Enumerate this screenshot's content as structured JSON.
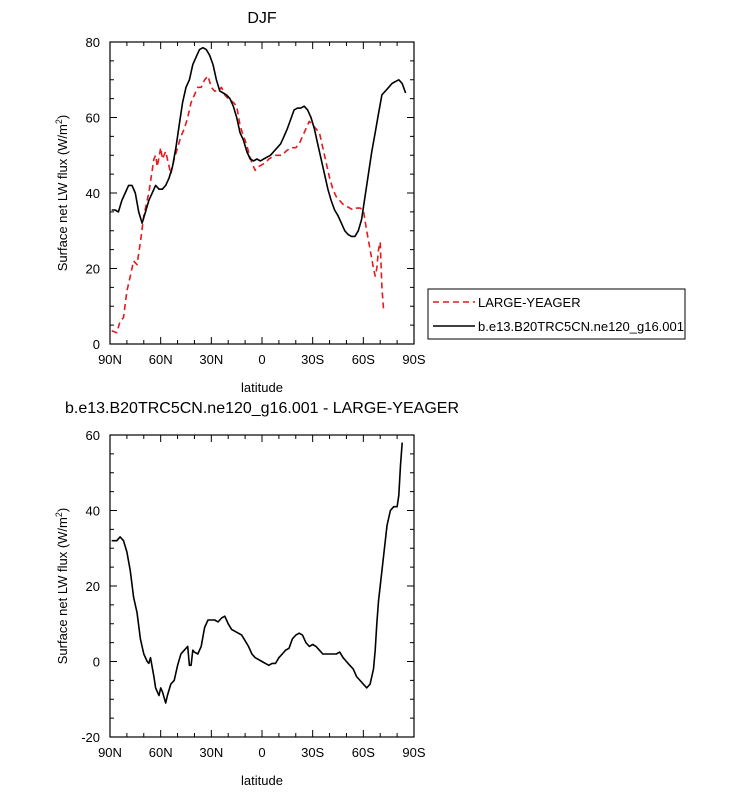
{
  "chart_data": [
    {
      "type": "line",
      "title": "DJF",
      "xlabel": "latitude",
      "ylabel": "Surface net LW flux (W/m",
      "ylabel_sup": "2",
      "ylabel_end": ")",
      "xlim": [
        90,
        -90
      ],
      "ylim": [
        0,
        80
      ],
      "x_ticks": [
        {
          "value": 90,
          "label": "90N"
        },
        {
          "value": 60,
          "label": "60N"
        },
        {
          "value": 30,
          "label": "30N"
        },
        {
          "value": 0,
          "label": "0"
        },
        {
          "value": -30,
          "label": "30S"
        },
        {
          "value": -60,
          "label": "60S"
        },
        {
          "value": -90,
          "label": "90S"
        }
      ],
      "y_ticks": [
        0,
        20,
        40,
        60,
        80
      ],
      "legend": [
        "LARGE-YEAGER",
        "b.e13.B20TRC5CN.ne120_g16.001"
      ],
      "series": [
        {
          "name": "LARGE-YEAGER",
          "color": "#e41a1c",
          "dash": true,
          "points": [
            [
              89,
              3.5
            ],
            [
              86,
              3
            ],
            [
              84,
              6
            ],
            [
              82,
              7
            ],
            [
              80,
              14
            ],
            [
              78,
              18
            ],
            [
              76,
              22
            ],
            [
              74,
              21
            ],
            [
              72,
              27
            ],
            [
              70,
              34
            ],
            [
              67,
              40
            ],
            [
              65,
              46
            ],
            [
              64,
              49
            ],
            [
              63,
              50
            ],
            [
              62,
              47
            ],
            [
              60,
              52
            ],
            [
              59,
              49
            ],
            [
              57,
              51
            ],
            [
              55,
              47
            ],
            [
              54,
              45
            ],
            [
              52,
              49
            ],
            [
              50,
              52
            ],
            [
              48,
              55
            ],
            [
              46,
              57
            ],
            [
              44,
              60
            ],
            [
              42,
              64
            ],
            [
              40,
              66
            ],
            [
              38,
              68
            ],
            [
              36,
              68
            ],
            [
              34,
              70
            ],
            [
              32,
              71
            ],
            [
              30,
              68
            ],
            [
              28,
              67
            ],
            [
              26,
              67
            ],
            [
              24,
              68
            ],
            [
              22,
              66
            ],
            [
              20,
              65
            ],
            [
              17,
              64
            ],
            [
              15,
              63
            ],
            [
              13,
              58
            ],
            [
              11,
              55
            ],
            [
              10,
              54
            ],
            [
              8,
              51
            ],
            [
              6,
              48
            ],
            [
              4,
              46
            ],
            [
              2,
              47
            ],
            [
              0,
              47.5
            ],
            [
              -2,
              48
            ],
            [
              -4,
              49
            ],
            [
              -6,
              49.5
            ],
            [
              -8,
              50
            ],
            [
              -10,
              50
            ],
            [
              -12,
              50
            ],
            [
              -14,
              51
            ],
            [
              -17,
              52
            ],
            [
              -20,
              52
            ],
            [
              -22,
              53
            ],
            [
              -24,
              55
            ],
            [
              -26,
              57
            ],
            [
              -28,
              59
            ],
            [
              -30,
              58
            ],
            [
              -32,
              57
            ],
            [
              -34,
              56
            ],
            [
              -36,
              52
            ],
            [
              -38,
              48
            ],
            [
              -40,
              44
            ],
            [
              -42,
              41
            ],
            [
              -44,
              39
            ],
            [
              -46,
              38
            ],
            [
              -48,
              37
            ],
            [
              -50,
              36.5
            ],
            [
              -52,
              36
            ],
            [
              -54,
              35.5
            ],
            [
              -56,
              36
            ],
            [
              -58,
              36
            ],
            [
              -60,
              35.5
            ],
            [
              -62,
              30
            ],
            [
              -64,
              25
            ],
            [
              -66,
              20
            ],
            [
              -67,
              18
            ],
            [
              -68,
              20
            ],
            [
              -69,
              25
            ],
            [
              -70,
              27
            ],
            [
              -71,
              15
            ],
            [
              -72,
              9
            ]
          ]
        },
        {
          "name": "b.e13.B20TRC5CN.ne120_g16.001",
          "color": "#000000",
          "dash": false,
          "points": [
            [
              89,
              35.5
            ],
            [
              87,
              35.5
            ],
            [
              85,
              35
            ],
            [
              83,
              38
            ],
            [
              81,
              40
            ],
            [
              79,
              42
            ],
            [
              77,
              42
            ],
            [
              75,
              40
            ],
            [
              73,
              35
            ],
            [
              71,
              32
            ],
            [
              69,
              35
            ],
            [
              67,
              38
            ],
            [
              65,
              40
            ],
            [
              63,
              42
            ],
            [
              61,
              41
            ],
            [
              59,
              41
            ],
            [
              57,
              42
            ],
            [
              55,
              44
            ],
            [
              53,
              47
            ],
            [
              51,
              52
            ],
            [
              49,
              58
            ],
            [
              47,
              64
            ],
            [
              45,
              68
            ],
            [
              43,
              70
            ],
            [
              41,
              74
            ],
            [
              39,
              76
            ],
            [
              37,
              78
            ],
            [
              35,
              78.5
            ],
            [
              33,
              78
            ],
            [
              31,
              76.5
            ],
            [
              29,
              74
            ],
            [
              27,
              70
            ],
            [
              25,
              67
            ],
            [
              23,
              66.5
            ],
            [
              21,
              66
            ],
            [
              19,
              65
            ],
            [
              17,
              63
            ],
            [
              15,
              60
            ],
            [
              13,
              56
            ],
            [
              11,
              54
            ],
            [
              9,
              51
            ],
            [
              7,
              49
            ],
            [
              5,
              48.5
            ],
            [
              3,
              49
            ],
            [
              1,
              48.5
            ],
            [
              -1,
              49
            ],
            [
              -3,
              49.5
            ],
            [
              -5,
              50
            ],
            [
              -7,
              51
            ],
            [
              -9,
              52
            ],
            [
              -11,
              53
            ],
            [
              -13,
              55
            ],
            [
              -15,
              57
            ],
            [
              -17,
              59.5
            ],
            [
              -19,
              62
            ],
            [
              -21,
              62.5
            ],
            [
              -23,
              62.5
            ],
            [
              -25,
              63
            ],
            [
              -27,
              62
            ],
            [
              -29,
              60
            ],
            [
              -31,
              57
            ],
            [
              -33,
              53
            ],
            [
              -35,
              49
            ],
            [
              -37,
              45
            ],
            [
              -39,
              41
            ],
            [
              -41,
              38
            ],
            [
              -43,
              35.5
            ],
            [
              -45,
              34
            ],
            [
              -47,
              32
            ],
            [
              -49,
              30
            ],
            [
              -51,
              29
            ],
            [
              -53,
              28.5
            ],
            [
              -55,
              28.5
            ],
            [
              -57,
              30
            ],
            [
              -59,
              33
            ],
            [
              -61,
              39
            ],
            [
              -63,
              45
            ],
            [
              -65,
              51
            ],
            [
              -67,
              56
            ],
            [
              -69,
              61
            ],
            [
              -71,
              66
            ],
            [
              -73,
              67
            ],
            [
              -75,
              68
            ],
            [
              -77,
              69
            ],
            [
              -79,
              69.5
            ],
            [
              -81,
              70
            ],
            [
              -83,
              69
            ],
            [
              -85,
              66.5
            ]
          ]
        }
      ]
    },
    {
      "type": "line",
      "title": "b.e13.B20TRC5CN.ne120_g16.001 - LARGE-YEAGER",
      "xlabel": "latitude",
      "ylabel": "Surface net LW flux (W/m",
      "ylabel_sup": "2",
      "ylabel_end": ")",
      "xlim": [
        90,
        -90
      ],
      "ylim": [
        -20,
        60
      ],
      "x_ticks": [
        {
          "value": 90,
          "label": "90N"
        },
        {
          "value": 60,
          "label": "60N"
        },
        {
          "value": 30,
          "label": "30N"
        },
        {
          "value": 0,
          "label": "0"
        },
        {
          "value": -30,
          "label": "30S"
        },
        {
          "value": -60,
          "label": "60S"
        },
        {
          "value": -90,
          "label": "90S"
        }
      ],
      "y_ticks": [
        -20,
        0,
        20,
        40,
        60
      ],
      "series": [
        {
          "name": "difference",
          "color": "#000000",
          "dash": false,
          "points": [
            [
              89,
              32
            ],
            [
              86,
              32
            ],
            [
              84,
              33
            ],
            [
              82,
              32
            ],
            [
              80,
              29
            ],
            [
              78,
              24
            ],
            [
              76,
              17
            ],
            [
              74,
              13
            ],
            [
              72,
              6
            ],
            [
              70,
              2
            ],
            [
              68,
              0
            ],
            [
              67,
              -0.5
            ],
            [
              66,
              1
            ],
            [
              64,
              -4
            ],
            [
              63,
              -7
            ],
            [
              61,
              -9
            ],
            [
              60,
              -7
            ],
            [
              59,
              -8
            ],
            [
              57,
              -11
            ],
            [
              56,
              -9
            ],
            [
              54,
              -6
            ],
            [
              52,
              -5
            ],
            [
              50,
              -1
            ],
            [
              48,
              2
            ],
            [
              46,
              3
            ],
            [
              44,
              4
            ],
            [
              43,
              -1
            ],
            [
              42,
              -1
            ],
            [
              41,
              3
            ],
            [
              40,
              2.5
            ],
            [
              38,
              2
            ],
            [
              36,
              4
            ],
            [
              34,
              9
            ],
            [
              32,
              11
            ],
            [
              30,
              11
            ],
            [
              28,
              11
            ],
            [
              26,
              10.5
            ],
            [
              24,
              11.5
            ],
            [
              22,
              12
            ],
            [
              20,
              10
            ],
            [
              18,
              8.5
            ],
            [
              16,
              8
            ],
            [
              14,
              7.5
            ],
            [
              12,
              7
            ],
            [
              10,
              5.5
            ],
            [
              8,
              4
            ],
            [
              6,
              2
            ],
            [
              4,
              1
            ],
            [
              2,
              0.5
            ],
            [
              0,
              0
            ],
            [
              -2,
              -0.5
            ],
            [
              -4,
              -1
            ],
            [
              -6,
              -0.5
            ],
            [
              -8,
              -0.5
            ],
            [
              -10,
              1
            ],
            [
              -12,
              2
            ],
            [
              -14,
              3
            ],
            [
              -16,
              3.5
            ],
            [
              -18,
              6
            ],
            [
              -20,
              7
            ],
            [
              -22,
              7.5
            ],
            [
              -24,
              7
            ],
            [
              -26,
              5
            ],
            [
              -28,
              4
            ],
            [
              -30,
              4.5
            ],
            [
              -32,
              4
            ],
            [
              -34,
              3
            ],
            [
              -36,
              2
            ],
            [
              -38,
              2
            ],
            [
              -40,
              2
            ],
            [
              -42,
              2
            ],
            [
              -44,
              2
            ],
            [
              -46,
              2.5
            ],
            [
              -48,
              1
            ],
            [
              -50,
              0
            ],
            [
              -52,
              -1
            ],
            [
              -54,
              -2
            ],
            [
              -56,
              -4
            ],
            [
              -58,
              -5
            ],
            [
              -60,
              -6
            ],
            [
              -62,
              -7
            ],
            [
              -64,
              -6
            ],
            [
              -66,
              -2
            ],
            [
              -67,
              3
            ],
            [
              -68,
              10
            ],
            [
              -69,
              16
            ],
            [
              -70,
              20
            ],
            [
              -72,
              28
            ],
            [
              -74,
              36
            ],
            [
              -76,
              40
            ],
            [
              -78,
              41
            ],
            [
              -80,
              41
            ],
            [
              -81,
              44
            ],
            [
              -82,
              52
            ],
            [
              -83,
              58
            ]
          ]
        }
      ]
    }
  ]
}
